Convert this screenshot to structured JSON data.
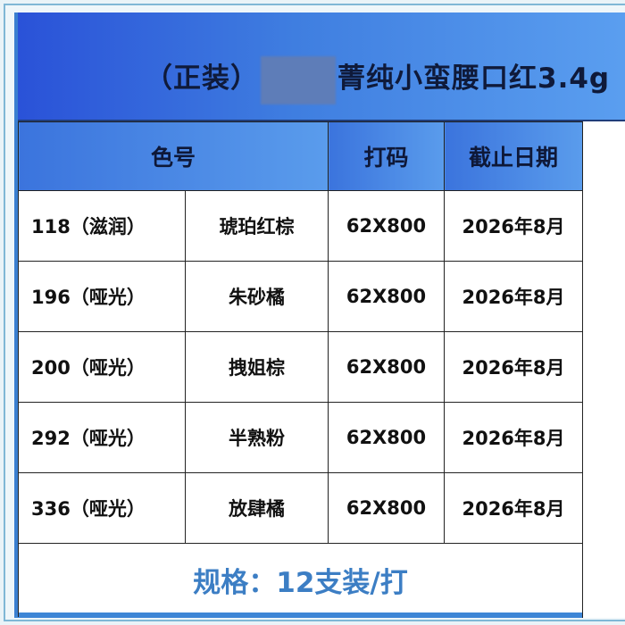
{
  "title": {
    "prefix": "（正装）",
    "suffix": "菁纯小蛮腰口红3.4g"
  },
  "headers": {
    "shade": "色号",
    "code": "打码",
    "expiry": "截止日期"
  },
  "rows": [
    {
      "shade_no": "118（滋润）",
      "color_name": "琥珀红棕",
      "code": "62X800",
      "expiry": "2026年8月"
    },
    {
      "shade_no": "196（哑光）",
      "color_name": "朱砂橘",
      "code": "62X800",
      "expiry": "2026年8月"
    },
    {
      "shade_no": "200（哑光）",
      "color_name": "拽姐棕",
      "code": "62X800",
      "expiry": "2026年8月"
    },
    {
      "shade_no": "292（哑光）",
      "color_name": "半熟粉",
      "code": "62X800",
      "expiry": "2026年8月"
    },
    {
      "shade_no": "336（哑光）",
      "color_name": "放肆橘",
      "code": "62X800",
      "expiry": "2026年8月"
    }
  ],
  "footer": "规格：12支装/打",
  "colors": {
    "header_blue": "#3f7ee0",
    "footer_text": "#3c7ec4"
  }
}
